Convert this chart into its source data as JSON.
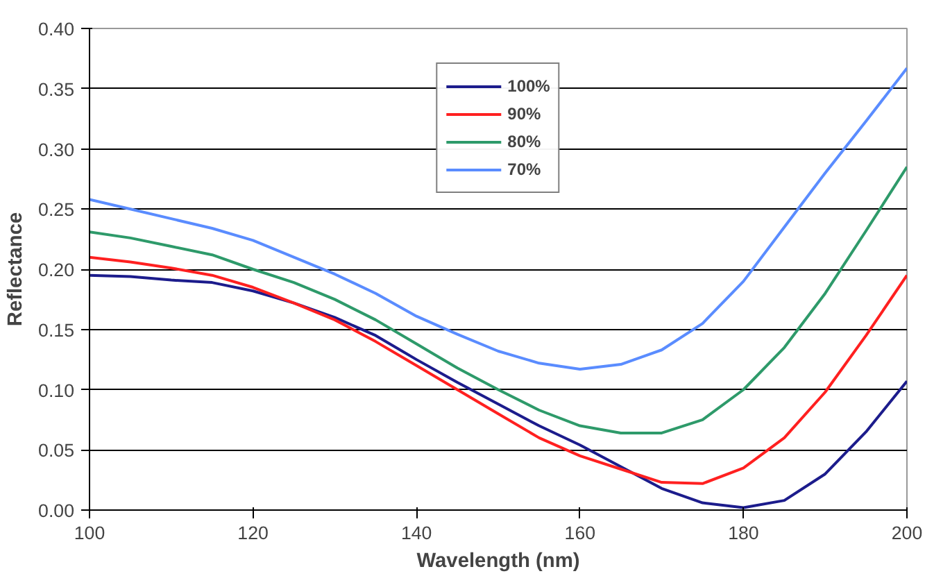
{
  "chart_data": {
    "type": "line",
    "xlabel": "Wavelength (nm)",
    "ylabel": "Reflectance",
    "x": [
      100,
      105,
      110,
      115,
      120,
      125,
      130,
      135,
      140,
      145,
      150,
      155,
      160,
      165,
      170,
      175,
      180,
      185,
      190,
      195,
      200
    ],
    "series": [
      {
        "name": "100%",
        "color": "#1c1c8c",
        "values": [
          0.195,
          0.194,
          0.191,
          0.189,
          0.182,
          0.172,
          0.16,
          0.145,
          0.125,
          0.106,
          0.088,
          0.07,
          0.054,
          0.036,
          0.018,
          0.006,
          0.002,
          0.008,
          0.03,
          0.065,
          0.107
        ]
      },
      {
        "name": "90%",
        "color": "#ff2020",
        "values": [
          0.21,
          0.206,
          0.201,
          0.195,
          0.185,
          0.172,
          0.158,
          0.14,
          0.12,
          0.1,
          0.08,
          0.06,
          0.045,
          0.034,
          0.023,
          0.022,
          0.035,
          0.06,
          0.098,
          0.145,
          0.195
        ]
      },
      {
        "name": "80%",
        "color": "#2e9a6a",
        "values": [
          0.231,
          0.226,
          0.219,
          0.212,
          0.2,
          0.189,
          0.175,
          0.158,
          0.138,
          0.118,
          0.1,
          0.083,
          0.07,
          0.064,
          0.064,
          0.075,
          0.1,
          0.135,
          0.18,
          0.232,
          0.285
        ]
      },
      {
        "name": "70%",
        "color": "#5a8cff",
        "values": [
          0.258,
          0.25,
          0.242,
          0.234,
          0.224,
          0.21,
          0.196,
          0.18,
          0.161,
          0.146,
          0.132,
          0.122,
          0.117,
          0.121,
          0.133,
          0.155,
          0.19,
          0.235,
          0.28,
          0.323,
          0.367
        ]
      }
    ],
    "xlim": [
      100,
      200
    ],
    "xticks": [
      100,
      120,
      140,
      160,
      180,
      200
    ],
    "ylim": [
      0,
      0.4
    ],
    "yticks": [
      {
        "value": 0,
        "label": "0.00"
      },
      {
        "value": 0.05,
        "label": "0.05"
      },
      {
        "value": 0.1,
        "label": "0.10"
      },
      {
        "value": 0.15,
        "label": "0.15"
      },
      {
        "value": 0.2,
        "label": "0.20"
      },
      {
        "value": 0.25,
        "label": "0.25"
      },
      {
        "value": 0.3,
        "label": "0.30"
      },
      {
        "value": 0.35,
        "label": "0.35"
      },
      {
        "value": 0.4,
        "label": "0.40"
      }
    ],
    "grid": "y",
    "legend": "top",
    "line_style": "solid",
    "marker": "none"
  }
}
